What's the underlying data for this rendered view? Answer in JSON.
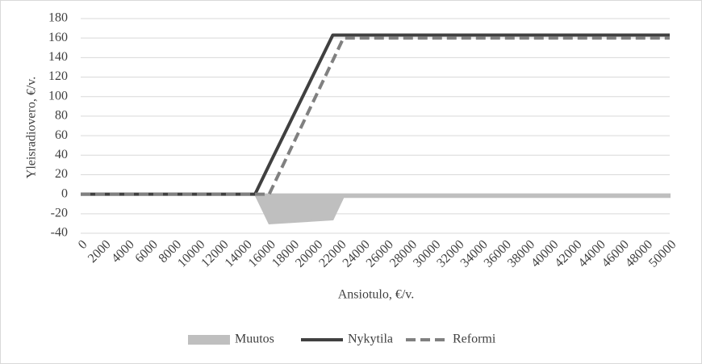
{
  "chart_data": {
    "type": "line",
    "x_label": "Ansiotulo, €/v.",
    "y_label": "Yleisradiovero, €/v.",
    "x": [
      0,
      14800,
      16000,
      21400,
      22300,
      50000
    ],
    "series": [
      {
        "name": "Muutos",
        "style": "area",
        "color": "#bfbfbf",
        "values": [
          0,
          0,
          -30,
          -26,
          -3,
          -3
        ]
      },
      {
        "name": "Nykytila",
        "style": "line",
        "color": "#404040",
        "values": [
          0,
          0,
          30,
          163,
          163,
          163
        ]
      },
      {
        "name": "Reformi",
        "style": "line",
        "dash": true,
        "color": "#808080",
        "values": [
          0,
          0,
          0,
          137,
          160,
          160
        ]
      }
    ],
    "xlim": [
      0,
      50000
    ],
    "xticks": [
      0,
      2000,
      4000,
      6000,
      8000,
      10000,
      12000,
      14000,
      16000,
      18000,
      20000,
      22000,
      24000,
      26000,
      28000,
      30000,
      32000,
      34000,
      36000,
      38000,
      40000,
      42000,
      44000,
      46000,
      48000,
      50000
    ],
    "ylim": [
      -40,
      180
    ],
    "yticks": [
      -40,
      -20,
      0,
      20,
      40,
      60,
      80,
      100,
      120,
      140,
      160,
      180
    ],
    "grid": true,
    "legend": "bottom"
  }
}
